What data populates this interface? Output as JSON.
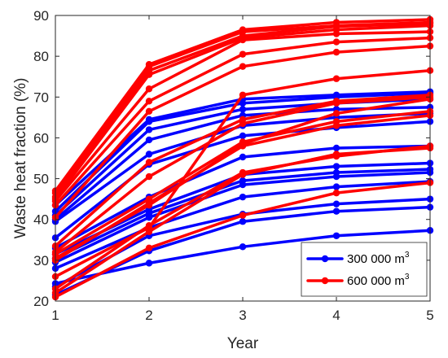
{
  "chart_data": {
    "type": "line",
    "xlabel": "Year",
    "ylabel": "Waste heat fraction (%)",
    "xlim": [
      1,
      5
    ],
    "ylim": [
      20,
      90
    ],
    "xticks": [
      1,
      2,
      3,
      4,
      5
    ],
    "yticks": [
      20,
      30,
      40,
      50,
      60,
      70,
      80,
      90
    ],
    "grid": false,
    "legend_position": "bottom-right",
    "x": [
      1,
      2,
      3,
      4,
      5
    ],
    "legend": [
      {
        "label": "300 000 m",
        "superscript": "3",
        "color": "#0000ff"
      },
      {
        "label": "600 000 m",
        "superscript": "3",
        "color": "#ff0000"
      }
    ],
    "series": [
      {
        "group": "300 000 m3",
        "color": "#0000ff",
        "values": [
          24.3,
          29.3,
          33.3,
          36.0,
          37.3
        ]
      },
      {
        "group": "300 000 m3",
        "color": "#0000ff",
        "values": [
          21.5,
          32.3,
          39.5,
          42.0,
          43.0
        ]
      },
      {
        "group": "300 000 m3",
        "color": "#0000ff",
        "values": [
          23.5,
          36.0,
          41.3,
          43.8,
          45.0
        ]
      },
      {
        "group": "300 000 m3",
        "color": "#0000ff",
        "values": [
          28.0,
          38.0,
          45.5,
          48.0,
          49.3
        ]
      },
      {
        "group": "300 000 m3",
        "color": "#0000ff",
        "values": [
          29.5,
          40.5,
          48.5,
          50.5,
          51.5
        ]
      },
      {
        "group": "300 000 m3",
        "color": "#0000ff",
        "values": [
          30.5,
          41.5,
          49.5,
          51.5,
          52.3
        ]
      },
      {
        "group": "300 000 m3",
        "color": "#0000ff",
        "values": [
          31.5,
          42.5,
          51.0,
          53.0,
          53.8
        ]
      },
      {
        "group": "300 000 m3",
        "color": "#0000ff",
        "values": [
          33.0,
          45.5,
          55.3,
          57.5,
          58.0
        ]
      },
      {
        "group": "300 000 m3",
        "color": "#0000ff",
        "values": [
          35.5,
          53.5,
          60.5,
          62.5,
          64.0
        ]
      },
      {
        "group": "300 000 m3",
        "color": "#0000ff",
        "values": [
          39.5,
          56.0,
          63.0,
          65.0,
          66.0
        ]
      },
      {
        "group": "300 000 m3",
        "color": "#0000ff",
        "values": [
          40.0,
          59.5,
          65.5,
          67.0,
          67.5
        ]
      },
      {
        "group": "300 000 m3",
        "color": "#0000ff",
        "values": [
          41.0,
          62.0,
          67.0,
          68.5,
          69.5
        ]
      },
      {
        "group": "300 000 m3",
        "color": "#0000ff",
        "values": [
          42.0,
          64.0,
          68.5,
          70.0,
          71.0
        ]
      },
      {
        "group": "300 000 m3",
        "color": "#0000ff",
        "values": [
          43.5,
          64.5,
          69.5,
          70.5,
          71.3
        ]
      },
      {
        "group": "600 000 m3",
        "color": "#ff0000",
        "values": [
          21.0,
          33.0,
          41.0,
          46.5,
          49.0
        ]
      },
      {
        "group": "600 000 m3",
        "color": "#ff0000",
        "values": [
          22.0,
          37.0,
          51.0,
          56.0,
          57.5
        ]
      },
      {
        "group": "600 000 m3",
        "color": "#ff0000",
        "values": [
          23.0,
          38.5,
          51.5,
          55.5,
          58.0
        ]
      },
      {
        "group": "600 000 m3",
        "color": "#ff0000",
        "values": [
          26.0,
          38.0,
          70.5,
          74.5,
          76.5
        ]
      },
      {
        "group": "600 000 m3",
        "color": "#ff0000",
        "values": [
          30.0,
          44.0,
          58.0,
          63.0,
          65.5
        ]
      },
      {
        "group": "600 000 m3",
        "color": "#ff0000",
        "values": [
          30.5,
          43.5,
          58.5,
          66.0,
          69.5
        ]
      },
      {
        "group": "600 000 m3",
        "color": "#ff0000",
        "values": [
          31.5,
          45.0,
          59.0,
          64.0,
          66.5
        ]
      },
      {
        "group": "600 000 m3",
        "color": "#ff0000",
        "values": [
          32.0,
          50.5,
          63.5,
          68.5,
          70.0
        ]
      },
      {
        "group": "600 000 m3",
        "color": "#ff0000",
        "values": [
          33.5,
          54.0,
          64.5,
          69.0,
          70.5
        ]
      },
      {
        "group": "600 000 m3",
        "color": "#ff0000",
        "values": [
          40.5,
          66.5,
          77.5,
          81.0,
          82.5
        ]
      },
      {
        "group": "600 000 m3",
        "color": "#ff0000",
        "values": [
          43.5,
          69.0,
          80.5,
          83.5,
          84.5
        ]
      },
      {
        "group": "600 000 m3",
        "color": "#ff0000",
        "values": [
          44.5,
          72.0,
          84.0,
          85.5,
          86.0
        ]
      },
      {
        "group": "600 000 m3",
        "color": "#ff0000",
        "values": [
          45.0,
          75.5,
          84.5,
          86.5,
          87.5
        ]
      },
      {
        "group": "600 000 m3",
        "color": "#ff0000",
        "values": [
          45.5,
          76.5,
          85.0,
          87.3,
          88.0
        ]
      },
      {
        "group": "600 000 m3",
        "color": "#ff0000",
        "values": [
          46.5,
          77.5,
          86.0,
          87.5,
          88.3
        ]
      },
      {
        "group": "600 000 m3",
        "color": "#ff0000",
        "values": [
          47.0,
          78.0,
          86.5,
          88.3,
          89.0
        ]
      }
    ]
  }
}
